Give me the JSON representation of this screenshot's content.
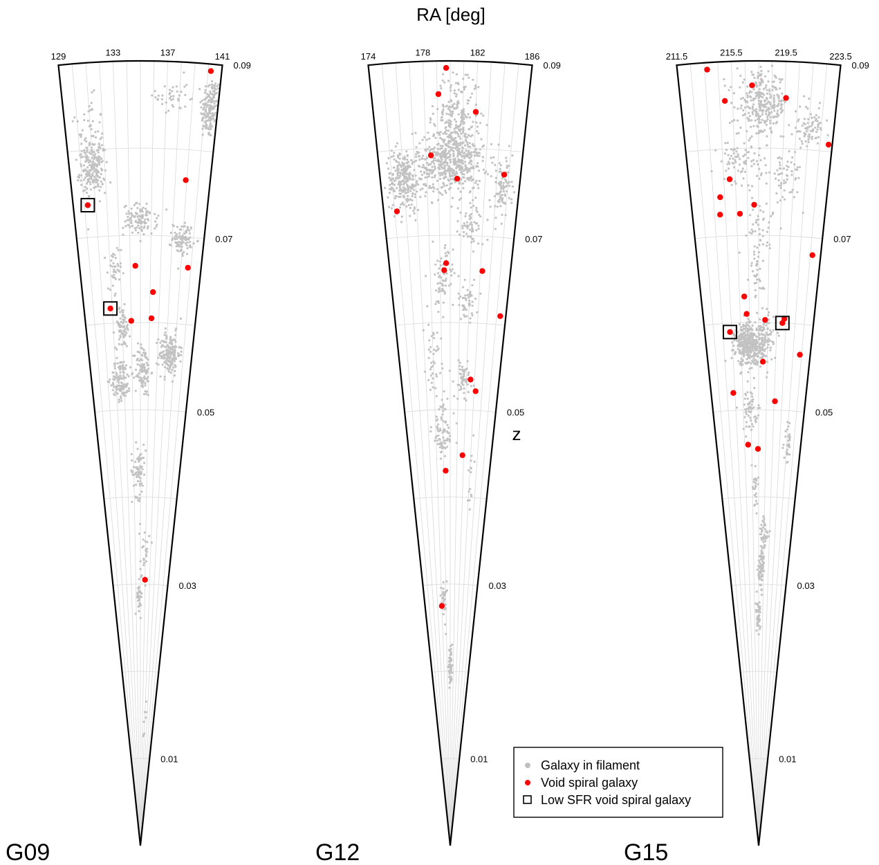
{
  "chart_data": {
    "type": "scatter",
    "projection": "polar wedge (RA vs redshift cone diagram)",
    "xlabel": "RA [deg]",
    "ylabel": "z",
    "zlim": [
      0,
      0.09
    ],
    "z_ticks": [
      "0.01",
      "0.03",
      "0.05",
      "0.07",
      "0.09"
    ],
    "grid": true,
    "legend_position": "bottom-right of middle panel",
    "legend": [
      {
        "label": "Galaxy in filament",
        "marker": "gray-dot",
        "color": "#c0c0c0"
      },
      {
        "label": "Void spiral galaxy",
        "marker": "red-dot",
        "color": "#ff0000"
      },
      {
        "label": "Low SFR void spiral galaxy",
        "marker": "open-square",
        "color": "#000000"
      }
    ],
    "panels": [
      {
        "name": "G09",
        "ra_range": [
          129,
          141
        ],
        "ra_ticks": [
          "129",
          "133",
          "137",
          "141"
        ],
        "void_spirals": [
          [
            140.2,
            0.0892
          ],
          [
            138.9,
            0.0765
          ],
          [
            130.3,
            0.0737
          ],
          [
            134.5,
            0.0665
          ],
          [
            139.7,
            0.0665
          ],
          [
            136.3,
            0.0635
          ],
          [
            131.8,
            0.0617
          ],
          [
            136.2,
            0.0605
          ],
          [
            134.0,
            0.0602
          ],
          [
            136.0,
            0.0305
          ]
        ],
        "low_sfr": [
          [
            130.3,
            0.0737
          ],
          [
            131.8,
            0.0617
          ]
        ],
        "filament_clusters": [
          {
            "ra": 140.4,
            "z": 0.085,
            "sra": 0.6,
            "sz": 0.003,
            "n": 170
          },
          {
            "ra": 131.0,
            "z": 0.081,
            "sra": 0.9,
            "sz": 0.004,
            "n": 80
          },
          {
            "ra": 137.4,
            "z": 0.086,
            "sra": 1.0,
            "sz": 0.002,
            "n": 40
          },
          {
            "ra": 130.9,
            "z": 0.0775,
            "sra": 0.9,
            "sz": 0.002,
            "n": 170
          },
          {
            "ra": 135.0,
            "z": 0.0718,
            "sra": 1.3,
            "sz": 0.0015,
            "n": 110
          },
          {
            "ra": 139.0,
            "z": 0.0698,
            "sra": 0.8,
            "sz": 0.0015,
            "n": 90
          },
          {
            "ra": 132.4,
            "z": 0.0655,
            "sra": 0.6,
            "sz": 0.003,
            "n": 40
          },
          {
            "ra": 133.0,
            "z": 0.0595,
            "sra": 0.7,
            "sz": 0.002,
            "n": 70
          },
          {
            "ra": 138.4,
            "z": 0.0565,
            "sra": 1.0,
            "sz": 0.002,
            "n": 170
          },
          {
            "ra": 135.3,
            "z": 0.0545,
            "sra": 0.8,
            "sz": 0.0025,
            "n": 110
          },
          {
            "ra": 132.6,
            "z": 0.0535,
            "sra": 1.0,
            "sz": 0.002,
            "n": 120
          },
          {
            "ra": 134.7,
            "z": 0.043,
            "sra": 0.9,
            "sz": 0.0025,
            "n": 70
          },
          {
            "ra": 135.8,
            "z": 0.034,
            "sra": 0.7,
            "sz": 0.003,
            "n": 25
          },
          {
            "ra": 134.8,
            "z": 0.0285,
            "sra": 0.5,
            "sz": 0.0015,
            "n": 35
          },
          {
            "ra": 137.0,
            "z": 0.0155,
            "sra": 0.6,
            "sz": 0.002,
            "n": 8
          }
        ]
      },
      {
        "name": "G12",
        "ra_range": [
          174,
          186
        ],
        "ra_ticks": [
          "174",
          "178",
          "182",
          "186"
        ],
        "void_spirals": [
          [
            179.7,
            0.0892
          ],
          [
            179.1,
            0.0862
          ],
          [
            182.0,
            0.0842
          ],
          [
            178.4,
            0.0792
          ],
          [
            180.6,
            0.0765
          ],
          [
            184.6,
            0.0772
          ],
          [
            175.2,
            0.073
          ],
          [
            179.6,
            0.0668
          ],
          [
            179.4,
            0.066
          ],
          [
            183.2,
            0.066
          ],
          [
            185.4,
            0.061
          ],
          [
            182.5,
            0.0535
          ],
          [
            183.2,
            0.0522
          ],
          [
            181.8,
            0.0448
          ],
          [
            179.3,
            0.043
          ],
          [
            178.0,
            0.0275
          ]
        ],
        "low_sfr": [],
        "filament_clusters": [
          {
            "ra": 180.5,
            "z": 0.083,
            "sra": 1.4,
            "sz": 0.005,
            "n": 260
          },
          {
            "ra": 180.0,
            "z": 0.0785,
            "sra": 2.3,
            "sz": 0.003,
            "n": 480
          },
          {
            "ra": 176.0,
            "z": 0.0765,
            "sra": 1.2,
            "sz": 0.003,
            "n": 260
          },
          {
            "ra": 184.5,
            "z": 0.0755,
            "sra": 0.8,
            "sz": 0.003,
            "n": 90
          },
          {
            "ra": 182.0,
            "z": 0.0712,
            "sra": 1.0,
            "sz": 0.002,
            "n": 60
          },
          {
            "ra": 179.2,
            "z": 0.065,
            "sra": 0.9,
            "sz": 0.003,
            "n": 70
          },
          {
            "ra": 181.8,
            "z": 0.0625,
            "sra": 1.0,
            "sz": 0.002,
            "n": 50
          },
          {
            "ra": 178.0,
            "z": 0.056,
            "sra": 0.8,
            "sz": 0.003,
            "n": 40
          },
          {
            "ra": 181.6,
            "z": 0.0535,
            "sra": 1.0,
            "sz": 0.002,
            "n": 55
          },
          {
            "ra": 179.0,
            "z": 0.0475,
            "sra": 1.3,
            "sz": 0.003,
            "n": 80
          },
          {
            "ra": 183.2,
            "z": 0.0425,
            "sra": 0.4,
            "sz": 0.003,
            "n": 15
          },
          {
            "ra": 178.5,
            "z": 0.028,
            "sra": 0.6,
            "sz": 0.002,
            "n": 35
          },
          {
            "ra": 180.0,
            "z": 0.0205,
            "sra": 0.5,
            "sz": 0.0015,
            "n": 60
          }
        ]
      },
      {
        "name": "G15",
        "ra_range": [
          211.5,
          223.5
        ],
        "ra_ticks": [
          "211.5",
          "215.5",
          "219.5",
          "223.5"
        ],
        "void_spirals": [
          [
            213.7,
            0.0892
          ],
          [
            217.0,
            0.0872
          ],
          [
            214.9,
            0.0855
          ],
          [
            219.6,
            0.0858
          ],
          [
            223.2,
            0.0808
          ],
          [
            215.0,
            0.0765
          ],
          [
            214.1,
            0.0745
          ],
          [
            217.1,
            0.0735
          ],
          [
            214.0,
            0.0725
          ],
          [
            215.8,
            0.0725
          ],
          [
            222.7,
            0.068
          ],
          [
            216.0,
            0.063
          ],
          [
            216.2,
            0.061
          ],
          [
            218.2,
            0.0603
          ],
          [
            220.3,
            0.0605
          ],
          [
            220.1,
            0.06
          ],
          [
            214.3,
            0.059
          ],
          [
            222.3,
            0.0565
          ],
          [
            218.0,
            0.0555
          ],
          [
            214.3,
            0.052
          ],
          [
            219.6,
            0.051
          ],
          [
            216.0,
            0.046
          ],
          [
            217.4,
            0.0455
          ]
        ],
        "low_sfr": [
          [
            214.3,
            0.059
          ],
          [
            220.1,
            0.06
          ]
        ],
        "filament_clusters": [
          {
            "ra": 217.8,
            "z": 0.085,
            "sra": 1.6,
            "sz": 0.003,
            "n": 300
          },
          {
            "ra": 221.5,
            "z": 0.0825,
            "sra": 1.0,
            "sz": 0.002,
            "n": 80
          },
          {
            "ra": 216.0,
            "z": 0.0785,
            "sra": 1.5,
            "sz": 0.002,
            "n": 80
          },
          {
            "ra": 219.8,
            "z": 0.0765,
            "sra": 1.1,
            "sz": 0.003,
            "n": 60
          },
          {
            "ra": 217.5,
            "z": 0.071,
            "sra": 1.3,
            "sz": 0.002,
            "n": 40
          },
          {
            "ra": 217.2,
            "z": 0.066,
            "sra": 0.7,
            "sz": 0.003,
            "n": 35
          },
          {
            "ra": 216.4,
            "z": 0.0575,
            "sra": 1.3,
            "sz": 0.002,
            "n": 420
          },
          {
            "ra": 218.2,
            "z": 0.058,
            "sra": 0.8,
            "sz": 0.0025,
            "n": 80
          },
          {
            "ra": 216.5,
            "z": 0.05,
            "sra": 1.0,
            "sz": 0.002,
            "n": 60
          },
          {
            "ra": 221.6,
            "z": 0.0465,
            "sra": 0.4,
            "sz": 0.002,
            "n": 30
          },
          {
            "ra": 217.0,
            "z": 0.041,
            "sra": 0.5,
            "sz": 0.003,
            "n": 25
          },
          {
            "ra": 218.5,
            "z": 0.0355,
            "sra": 0.7,
            "sz": 0.002,
            "n": 45
          },
          {
            "ra": 218.0,
            "z": 0.0315,
            "sra": 0.6,
            "sz": 0.002,
            "n": 60
          },
          {
            "ra": 217.4,
            "z": 0.0265,
            "sra": 0.5,
            "sz": 0.0015,
            "n": 40
          }
        ]
      }
    ]
  }
}
